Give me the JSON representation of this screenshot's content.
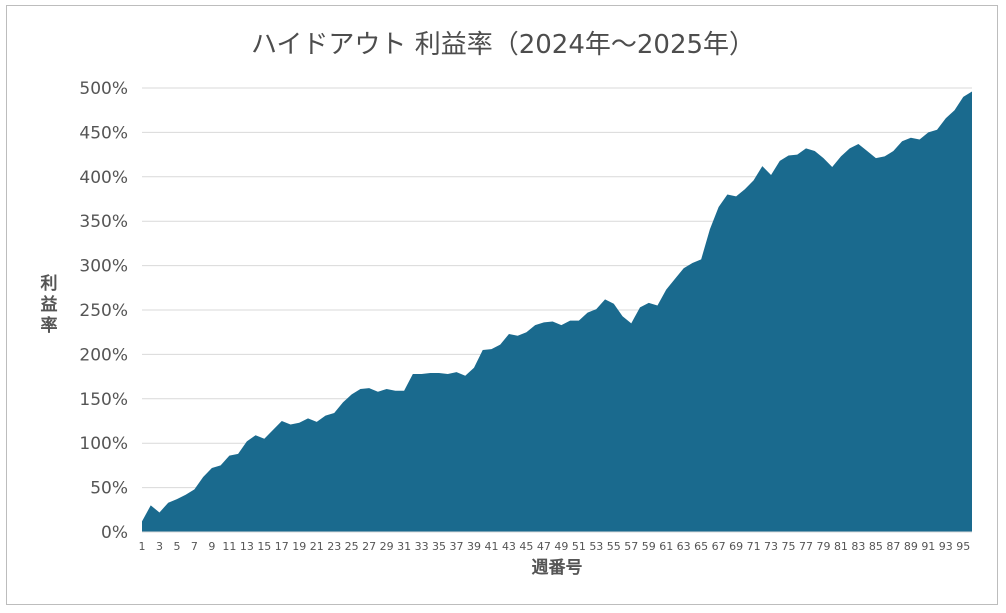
{
  "chart_data": {
    "type": "area",
    "title": "ハイドアウト 利益率（2024年～2025年）",
    "xlabel": "週番号",
    "ylabel": "利益率",
    "xlim": [
      1,
      96
    ],
    "ylim": [
      0,
      500
    ],
    "y_unit": "%",
    "y_ticks": [
      0,
      50,
      100,
      150,
      200,
      250,
      300,
      350,
      400,
      450,
      500
    ],
    "x_tick_labels": [
      1,
      3,
      5,
      7,
      9,
      11,
      13,
      15,
      17,
      19,
      21,
      23,
      25,
      27,
      29,
      31,
      33,
      35,
      37,
      39,
      41,
      43,
      45,
      47,
      49,
      51,
      53,
      55,
      57,
      59,
      61,
      63,
      65,
      67,
      69,
      71,
      73,
      75,
      77,
      79,
      81,
      83,
      85,
      87,
      89,
      91,
      93,
      95
    ],
    "grid": "horizontal",
    "legend": "none",
    "fill_color": "#1a6a8e",
    "grid_color": "#d9d9d9",
    "series": [
      {
        "x": [
          1,
          2,
          3,
          4,
          5,
          6,
          7,
          8,
          9,
          10,
          11,
          12,
          13,
          14,
          15,
          16,
          17,
          18,
          19,
          20,
          21,
          22,
          23,
          24,
          25,
          26,
          27,
          28,
          29,
          30,
          31,
          32,
          33,
          34,
          35,
          36,
          37,
          38,
          39,
          40,
          41,
          42,
          43,
          44,
          45,
          46,
          47,
          48,
          49,
          50,
          51,
          52,
          53,
          54,
          55,
          56,
          57,
          58,
          59,
          60,
          61,
          62,
          63,
          64,
          65,
          66,
          67,
          68,
          69,
          70,
          71,
          72,
          73,
          74,
          75,
          76,
          77,
          78,
          79,
          80,
          81,
          82,
          83,
          84,
          85,
          86,
          87,
          88,
          89,
          90,
          91,
          92,
          93,
          94,
          95,
          96
        ],
        "values": [
          12,
          30,
          22,
          33,
          37,
          42,
          48,
          62,
          72,
          75,
          86,
          88,
          102,
          109,
          105,
          115,
          125,
          121,
          123,
          128,
          124,
          131,
          134,
          146,
          155,
          161,
          162,
          158,
          161,
          159,
          159,
          178,
          178,
          179,
          179,
          178,
          180,
          176,
          185,
          205,
          206,
          211,
          223,
          221,
          225,
          233,
          236,
          237,
          233,
          238,
          238,
          247,
          251,
          262,
          257,
          243,
          235,
          253,
          258,
          255,
          273,
          285,
          297,
          303,
          307,
          341,
          366,
          380,
          378,
          386,
          396,
          412,
          402,
          418,
          424,
          425,
          432,
          429,
          421,
          411,
          423,
          432,
          437,
          429,
          421,
          423,
          429,
          440,
          444,
          442,
          450,
          453,
          466,
          475,
          490,
          496
        ]
      }
    ]
  }
}
